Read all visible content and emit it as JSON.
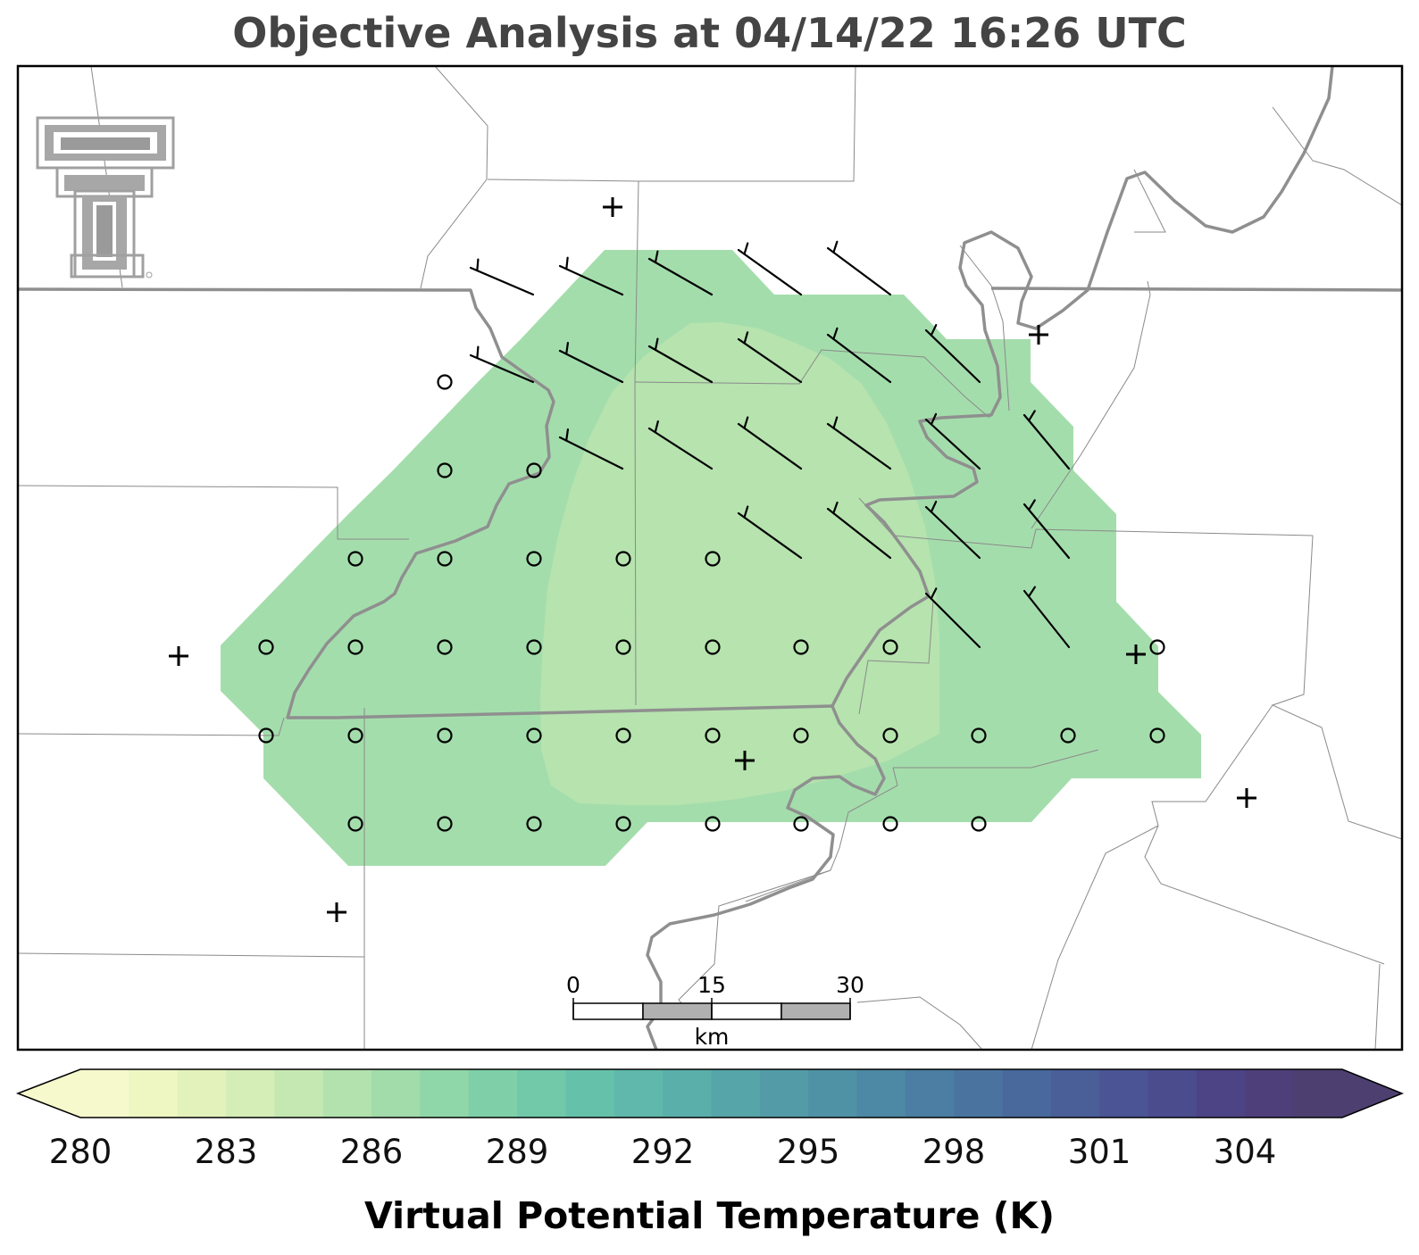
{
  "title": "Objective Analysis at 04/14/22 16:26 UTC",
  "colorbar": {
    "title": "Virtual Potential Temperature (K)",
    "tick_labels": [
      "280",
      "283",
      "286",
      "289",
      "292",
      "295",
      "298",
      "301",
      "304"
    ],
    "colors": [
      "#f6f9cc",
      "#eef6c2",
      "#e3f2bb",
      "#d5edb7",
      "#c5e8b2",
      "#b3e2ae",
      "#a1dcaa",
      "#8fd6a8",
      "#7fd0a9",
      "#71c9aa",
      "#66c1ab",
      "#5fb8ab",
      "#5aafaa",
      "#56a5a8",
      "#539ca7",
      "#5092a5",
      "#4d88a4",
      "#4b7ea2",
      "#4a749f",
      "#49699c",
      "#4a5f98",
      "#4b5595",
      "#4b4c8e",
      "#4c4485",
      "#4e3f7b",
      "#4d3f70"
    ]
  },
  "scale_bar": {
    "labels": [
      "0",
      "15",
      "30"
    ],
    "unit": "km"
  },
  "logo": {
    "name": "texas-tech-logo"
  },
  "analysis": {
    "fill_outer": "#a4ddac",
    "fill_inner": "#b6e3ae",
    "station_marker": "+",
    "calm_marker": "circle"
  }
}
